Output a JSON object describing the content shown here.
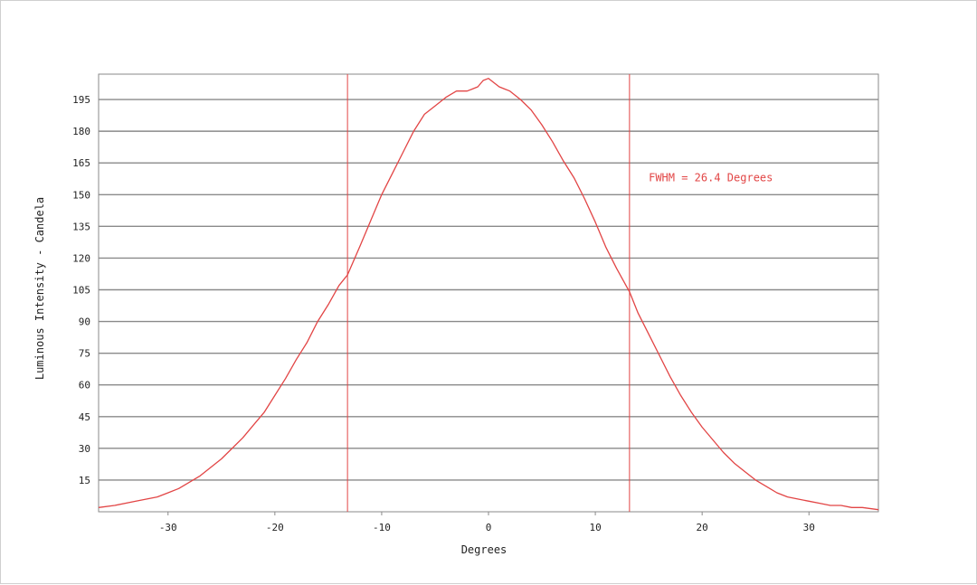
{
  "chart_data": {
    "type": "line",
    "title": "",
    "xlabel": "Degrees",
    "ylabel": "Luminous Intensity - Candela",
    "xlim": [
      -36.5,
      36.5
    ],
    "ylim": [
      0,
      207
    ],
    "x_ticks": [
      -30,
      -20,
      -10,
      0,
      10,
      20,
      30
    ],
    "x_tick_labels": [
      "-30",
      "-20",
      "-10",
      "0",
      "10",
      "20",
      "30"
    ],
    "y_ticks": [
      15,
      30,
      45,
      60,
      75,
      90,
      105,
      120,
      135,
      150,
      165,
      180,
      195
    ],
    "y_tick_labels": [
      "15",
      "30",
      "45",
      "60",
      "75",
      "90",
      "105",
      "120",
      "135",
      "150",
      "165",
      "180",
      "195"
    ],
    "grid": "horizontal",
    "colors": {
      "series": "#e24545",
      "grid": "#8a8a8a",
      "text": "#222222",
      "annotation": "#e24545"
    },
    "series": [
      {
        "x": [
          -36.5,
          -35,
          -33,
          -31,
          -30,
          -29,
          -28,
          -27,
          -26,
          -25,
          -24,
          -23,
          -22,
          -21,
          -20,
          -19,
          -18,
          -17,
          -16,
          -15,
          -14,
          -13.2,
          -12,
          -11,
          -10,
          -9,
          -8,
          -7,
          -6,
          -5,
          -4,
          -3,
          -2.5,
          -2,
          -1.5,
          -1,
          -0.5,
          0,
          0.5,
          1,
          1.5,
          2,
          3,
          4,
          5,
          6,
          7,
          8,
          9,
          10,
          11,
          12,
          13.2,
          14,
          15,
          16,
          17,
          18,
          19,
          20,
          21,
          22,
          23,
          24,
          25,
          26,
          27,
          28,
          29,
          30,
          31,
          32,
          33,
          34,
          35,
          36.5
        ],
        "y": [
          2,
          3,
          5,
          7,
          9,
          11,
          14,
          17,
          21,
          25,
          30,
          35,
          41,
          47,
          55,
          63,
          72,
          80,
          90,
          98,
          107,
          112,
          126,
          138,
          150,
          160,
          170,
          180,
          188,
          192,
          196,
          199,
          199,
          199,
          200,
          201,
          204,
          205,
          203,
          201,
          200,
          199,
          195,
          190,
          183,
          175,
          166,
          158,
          148,
          137,
          125,
          115,
          104,
          94,
          84,
          74,
          64,
          55,
          47,
          40,
          34,
          28,
          23,
          19,
          15,
          12,
          9,
          7,
          6,
          5,
          4,
          3,
          3,
          2,
          2,
          1
        ]
      }
    ],
    "vertical_markers": [
      -13.2,
      13.2
    ],
    "annotations": [
      {
        "text": "FWHM = 26.4 Degrees",
        "x": 15,
        "y": 158
      }
    ]
  }
}
